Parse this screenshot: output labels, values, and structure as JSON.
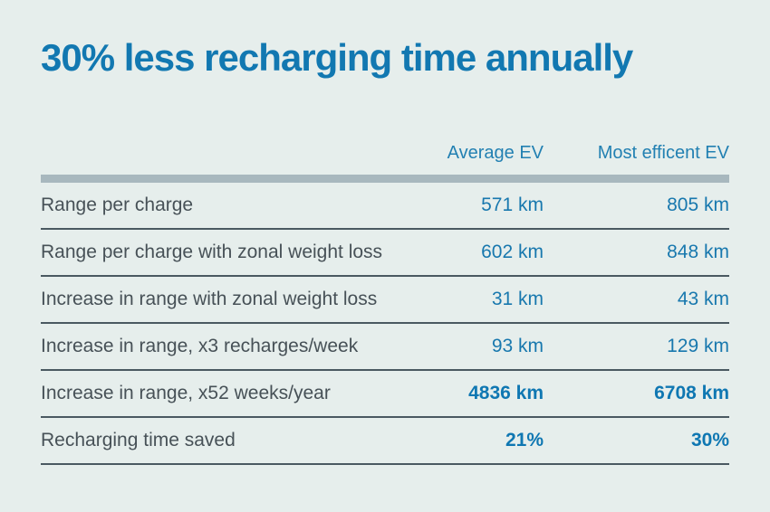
{
  "colors": {
    "background": "#e6eeec",
    "accent_blue": "#1278b1",
    "value_blue": "#1878ae",
    "label_gray": "#475157",
    "divider": "#4a5961",
    "header_bar": "#a8b8be"
  },
  "chart_data": {
    "type": "table",
    "title": "30% less recharging time annually",
    "columns": [
      "Average EV",
      "Most efficent EV"
    ],
    "rows": [
      {
        "label": "Range per charge",
        "values": [
          "571 km",
          "805 km"
        ],
        "bold": false
      },
      {
        "label": "Range per charge with zonal weight loss",
        "values": [
          "602 km",
          "848 km"
        ],
        "bold": false
      },
      {
        "label": "Increase in range with zonal weight loss",
        "values": [
          "31 km",
          "43 km"
        ],
        "bold": false
      },
      {
        "label": "Increase in range, x3 recharges/week",
        "values": [
          "93 km",
          "129 km"
        ],
        "bold": false
      },
      {
        "label": "Increase in range, x52 weeks/year",
        "values": [
          "4836 km",
          "6708 km"
        ],
        "bold": true
      },
      {
        "label": "Recharging time saved",
        "values": [
          "21%",
          "30%"
        ],
        "bold": true
      }
    ]
  }
}
